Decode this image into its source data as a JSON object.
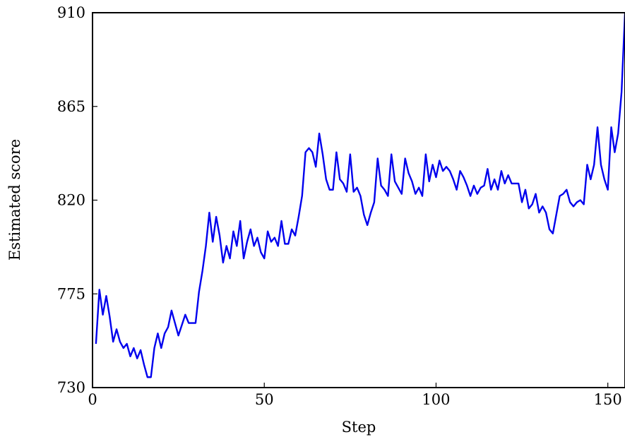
{
  "chart_data": {
    "type": "line",
    "title": "",
    "xlabel": "Step",
    "ylabel": "Estimated score",
    "xlim": [
      0,
      155
    ],
    "ylim": [
      730,
      910
    ],
    "xticks": [
      0,
      50,
      100,
      150
    ],
    "yticks": [
      730,
      775,
      820,
      865,
      910
    ],
    "grid": false,
    "line_color": "#0000ee",
    "series": [
      {
        "x": [
          1,
          2,
          3,
          4,
          5,
          6,
          7,
          8,
          9,
          10,
          11,
          12,
          13,
          14,
          15,
          16,
          17,
          18,
          19,
          20,
          21,
          22,
          23,
          24,
          25,
          26,
          27,
          28,
          29,
          30,
          31,
          32,
          33,
          34,
          35,
          36,
          37,
          38,
          39,
          40,
          41,
          42,
          43,
          44,
          45,
          46,
          47,
          48,
          49,
          50,
          51,
          52,
          53,
          54,
          55,
          56,
          57,
          58,
          59,
          60,
          61,
          62,
          63,
          64,
          65,
          66,
          67,
          68,
          69,
          70,
          71,
          72,
          73,
          74,
          75,
          76,
          77,
          78,
          79,
          80,
          81,
          82,
          83,
          84,
          85,
          86,
          87,
          88,
          89,
          90,
          91,
          92,
          93,
          94,
          95,
          96,
          97,
          98,
          99,
          100,
          101,
          102,
          103,
          104,
          105,
          106,
          107,
          108,
          109,
          110,
          111,
          112,
          113,
          114,
          115,
          116,
          117,
          118,
          119,
          120,
          121,
          122,
          123,
          124,
          125,
          126,
          127,
          128,
          129,
          130,
          131,
          132,
          133,
          134,
          135,
          136,
          137,
          138,
          139,
          140,
          141,
          142,
          143,
          144,
          145,
          146,
          147,
          148,
          149,
          150,
          151,
          152,
          153,
          154,
          155
        ],
        "values": [
          751,
          777,
          765,
          774,
          764,
          752,
          758,
          752,
          749,
          751,
          745,
          749,
          744,
          748,
          741,
          735,
          735,
          749,
          756,
          749,
          756,
          759,
          767,
          761,
          755,
          760,
          765,
          761,
          761,
          761,
          776,
          786,
          798,
          814,
          800,
          812,
          803,
          790,
          798,
          792,
          805,
          798,
          810,
          792,
          800,
          806,
          798,
          802,
          795,
          792,
          805,
          800,
          802,
          798,
          810,
          799,
          799,
          806,
          803,
          812,
          822,
          843,
          845,
          843,
          836,
          852,
          842,
          830,
          825,
          825,
          843,
          830,
          828,
          824,
          842,
          824,
          826,
          822,
          813,
          808,
          814,
          819,
          840,
          827,
          825,
          822,
          842,
          829,
          826,
          823,
          840,
          833,
          829,
          823,
          826,
          822,
          842,
          829,
          837,
          831,
          839,
          834,
          836,
          834,
          830,
          825,
          834,
          831,
          827,
          822,
          827,
          823,
          826,
          827,
          835,
          825,
          830,
          825,
          834,
          828,
          832,
          828,
          828,
          828,
          819,
          825,
          816,
          818,
          823,
          814,
          817,
          814,
          806,
          804,
          813,
          822,
          823,
          825,
          819,
          817,
          819,
          820,
          818,
          837,
          830,
          837,
          855,
          837,
          830,
          825,
          855,
          843,
          852,
          872,
          910
        ]
      }
    ]
  }
}
